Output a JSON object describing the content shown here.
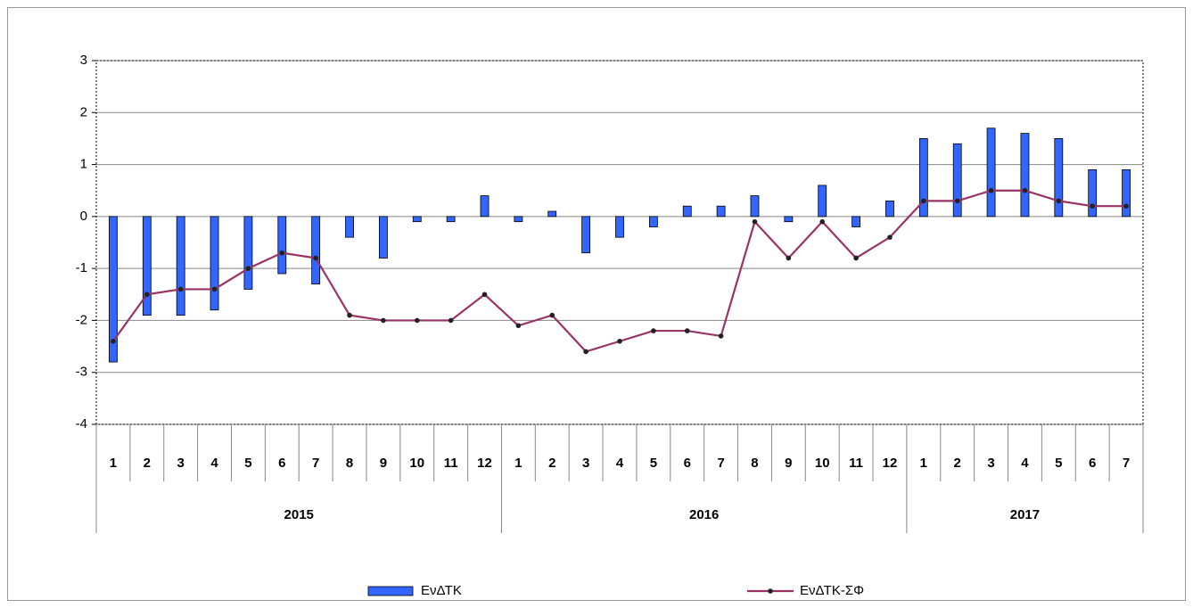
{
  "chart_data": {
    "type": "combo",
    "category_groups": [
      {
        "label": "2015",
        "categories": [
          "1",
          "2",
          "3",
          "4",
          "5",
          "6",
          "7",
          "8",
          "9",
          "10",
          "11",
          "12"
        ]
      },
      {
        "label": "2016",
        "categories": [
          "1",
          "2",
          "3",
          "4",
          "5",
          "6",
          "7",
          "8",
          "9",
          "10",
          "11",
          "12"
        ]
      },
      {
        "label": "2017",
        "categories": [
          "1",
          "2",
          "3",
          "4",
          "5",
          "6",
          "7"
        ]
      }
    ],
    "series": [
      {
        "name": "ΕνΔΤΚ",
        "type": "bar",
        "color": "#3366ff",
        "values": [
          -2.8,
          -1.9,
          -1.9,
          -1.8,
          -1.4,
          -1.1,
          -1.3,
          -0.4,
          -0.8,
          -0.1,
          -0.1,
          0.4,
          -0.1,
          0.1,
          -0.7,
          -0.4,
          -0.2,
          0.2,
          0.2,
          0.4,
          -0.1,
          0.6,
          -0.2,
          0.3,
          1.5,
          1.4,
          1.7,
          1.6,
          1.5,
          0.9,
          0.9
        ]
      },
      {
        "name": "ΕνΔΤΚ-ΣΦ",
        "type": "line",
        "color": "#993366",
        "values": [
          -2.4,
          -1.5,
          -1.4,
          -1.4,
          -1.0,
          -0.7,
          -0.8,
          -1.9,
          -2.0,
          -2.0,
          -2.0,
          -1.5,
          -2.1,
          -1.9,
          -2.6,
          -2.4,
          -2.2,
          -2.2,
          -2.3,
          -0.1,
          -0.8,
          -0.1,
          -0.8,
          -0.4,
          0.3,
          0.3,
          0.5,
          0.5,
          0.3,
          0.2,
          0.2
        ]
      }
    ],
    "ylim": [
      -4,
      3
    ],
    "yticks": [
      -4,
      -3,
      -2,
      -1,
      0,
      1,
      2,
      3
    ],
    "grid": true
  }
}
